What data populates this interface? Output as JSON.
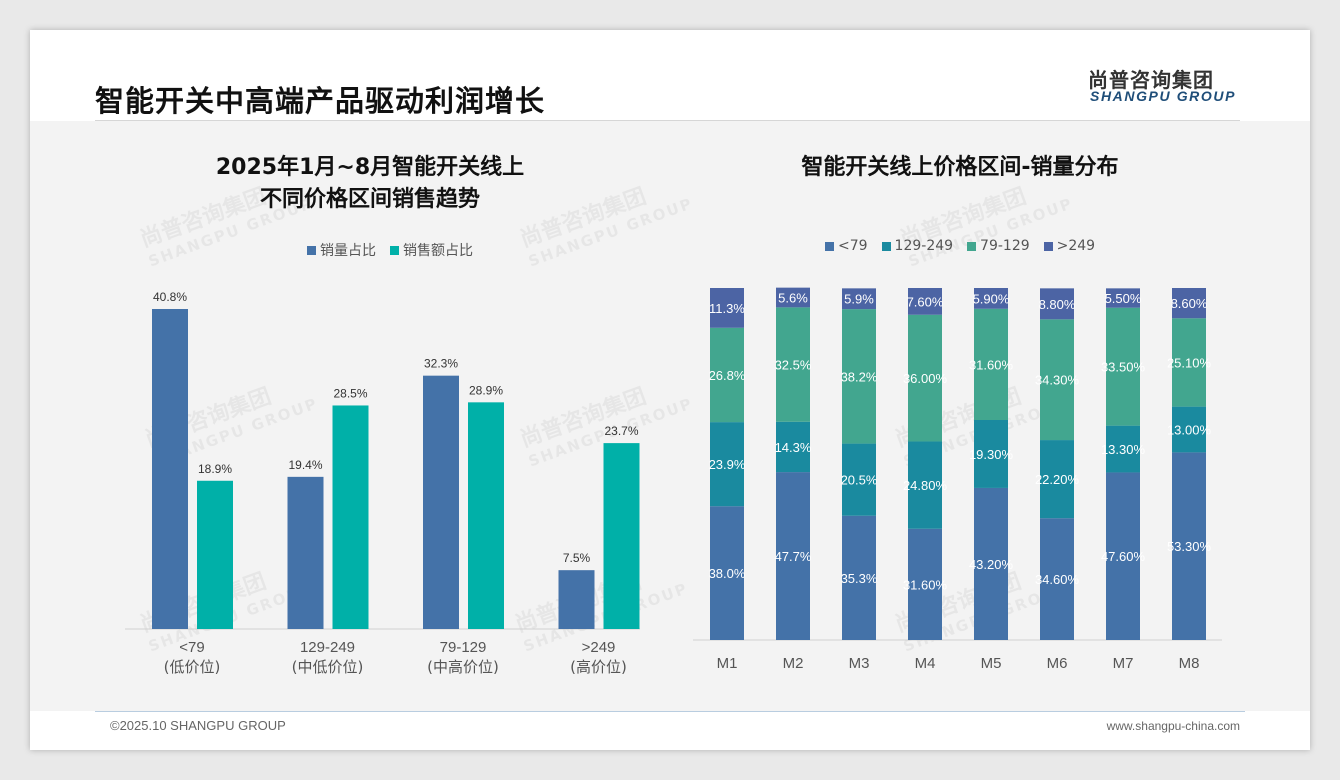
{
  "header": {
    "title": "智能开关中高端产品驱动利润增长",
    "logo_cn": "尚普咨询集团",
    "logo_en": "SHANGPU GROUP"
  },
  "footer": {
    "copyright": "©2025.10 SHANGPU GROUP",
    "website": "www.shangpu-china.com"
  },
  "watermark": {
    "cn": "尚普咨询集团",
    "en": "SHANGPU GROUP"
  },
  "chart_data": [
    {
      "type": "bar",
      "title_line1": "2025年1月~8月智能开关线上",
      "title_line2": "不同价格区间销售趋势",
      "categories": [
        "<79",
        "129-249",
        "79-129",
        ">249"
      ],
      "category_sublabels": [
        "(低价位)",
        "(中低价位)",
        "(中高价位)",
        "(高价位)"
      ],
      "series": [
        {
          "name": "销量占比",
          "color": "#4472a8",
          "values": [
            40.8,
            19.4,
            32.3,
            7.5
          ],
          "labels": [
            "40.8%",
            "19.4%",
            "32.3%",
            "7.5%"
          ]
        },
        {
          "name": "销售额占比",
          "color": "#00b0a8",
          "values": [
            18.9,
            28.5,
            28.9,
            23.7
          ],
          "labels": [
            "18.9%",
            "28.5%",
            "28.9%",
            "23.7%"
          ]
        }
      ],
      "ylim": [
        0,
        40.8
      ],
      "legend": "top-center",
      "grid": false
    },
    {
      "type": "bar",
      "stacked": true,
      "title": "智能开关线上价格区间-销量分布",
      "categories": [
        "M1",
        "M2",
        "M3",
        "M4",
        "M5",
        "M6",
        "M7",
        "M8"
      ],
      "series": [
        {
          "name": "<79",
          "color": "#4472a8",
          "values": [
            38.0,
            47.7,
            35.3,
            31.6,
            43.2,
            34.6,
            47.6,
            53.3
          ],
          "labels": [
            "38.0%",
            "47.7%",
            "35.3%",
            "31.60%",
            "43.20%",
            "34.60%",
            "47.60%",
            "53.30%"
          ]
        },
        {
          "name": "129-249",
          "color": "#1a8a9f",
          "values": [
            23.9,
            14.3,
            20.5,
            24.8,
            19.3,
            22.2,
            13.3,
            13.0
          ],
          "labels": [
            "23.9%",
            "14.3%",
            "20.5%",
            "24.80%",
            "19.30%",
            "22.20%",
            "13.30%",
            "13.00%"
          ]
        },
        {
          "name": "79-129",
          "color": "#42a68f",
          "values": [
            26.8,
            32.5,
            38.2,
            36.0,
            31.6,
            34.3,
            33.5,
            25.1
          ],
          "labels": [
            "26.8%",
            "32.5%",
            "38.2%",
            "36.00%",
            "31.60%",
            "34.30%",
            "33.50%",
            "25.10%"
          ]
        },
        {
          "name": ">249",
          "color": "#4c64a4",
          "values": [
            11.3,
            5.6,
            5.9,
            7.6,
            5.9,
            8.8,
            5.5,
            8.6
          ],
          "labels": [
            "11.3%",
            "5.6%",
            "5.9%",
            "7.60%",
            "5.90%",
            "8.80%",
            "5.50%",
            "8.60%"
          ]
        }
      ],
      "ylim": [
        0,
        100
      ],
      "legend": "top-center",
      "grid": false
    }
  ]
}
